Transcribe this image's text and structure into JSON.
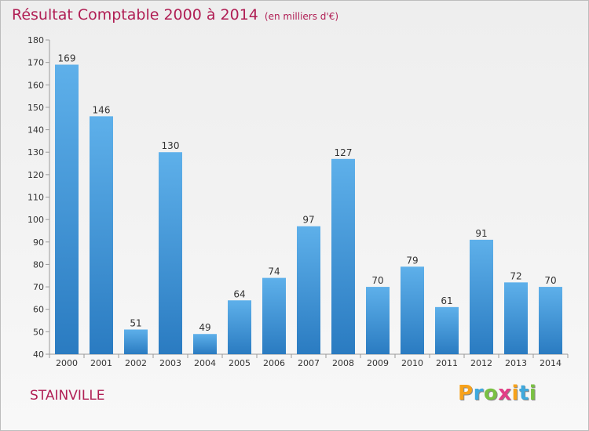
{
  "header": {
    "title": "Résultat Comptable 2000 à 2014",
    "subtitle": "(en milliers d'€)"
  },
  "footer": {
    "city": "STAINVILLE",
    "logo_letters": [
      "P",
      "r",
      "o",
      "x",
      "i",
      "t",
      "i"
    ],
    "logo_colors": [
      "#f7a21b",
      "#3fa9dd",
      "#7ac143",
      "#e23f86",
      "#f7a21b",
      "#3fa9dd",
      "#7ac143"
    ]
  },
  "colors": {
    "bar_top": "#5eb0ea",
    "bar_bottom": "#2a7bc1",
    "axis": "#9a9a9a",
    "text": "#333333",
    "brand": "#b01e54"
  },
  "chart_data": {
    "type": "bar",
    "categories": [
      "2000",
      "2001",
      "2002",
      "2003",
      "2004",
      "2005",
      "2006",
      "2007",
      "2008",
      "2009",
      "2010",
      "2011",
      "2012",
      "2013",
      "2014"
    ],
    "values": [
      169,
      146,
      51,
      130,
      49,
      64,
      74,
      97,
      127,
      70,
      79,
      61,
      91,
      72,
      70
    ],
    "yticks": [
      40,
      50,
      60,
      70,
      80,
      90,
      100,
      110,
      120,
      130,
      140,
      150,
      160,
      170,
      180
    ],
    "ylim": [
      40,
      180
    ],
    "grid": false,
    "data_labels": true
  }
}
